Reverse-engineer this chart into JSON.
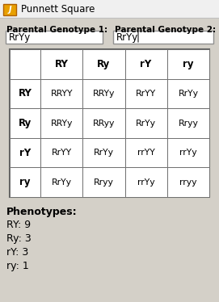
{
  "title": "Punnett Square",
  "label1": "Parental Genotype 1:",
  "label2": "Parental Genotype 2:",
  "input1": "RrYy",
  "input2": "RrYy",
  "col_headers": [
    "",
    "RY",
    "Ry",
    "rY",
    "ry"
  ],
  "row_headers": [
    "RY",
    "Ry",
    "rY",
    "ry"
  ],
  "table_data": [
    [
      "RRYY",
      "RRYy",
      "RrYY",
      "RrYy"
    ],
    [
      "RRYy",
      "RRyy",
      "RrYy",
      "Rryy"
    ],
    [
      "RrYY",
      "RrYy",
      "rrYY",
      "rrYy"
    ],
    [
      "RrYy",
      "Rryy",
      "rrYy",
      "rryy"
    ]
  ],
  "phenotypes_title": "Phenotypes:",
  "phenotypes": [
    "RY: 9",
    "Ry: 3",
    "rY: 3",
    "ry: 1"
  ],
  "bg_color": "#d4d0c8",
  "table_bg": "#ffffff",
  "input_bg": "#ffffff",
  "cell_text_color": "#000000",
  "title_color": "#000000",
  "titlebar_color": "#f0f0f0",
  "icon_color": "#e8a000",
  "border_color": "#808080"
}
